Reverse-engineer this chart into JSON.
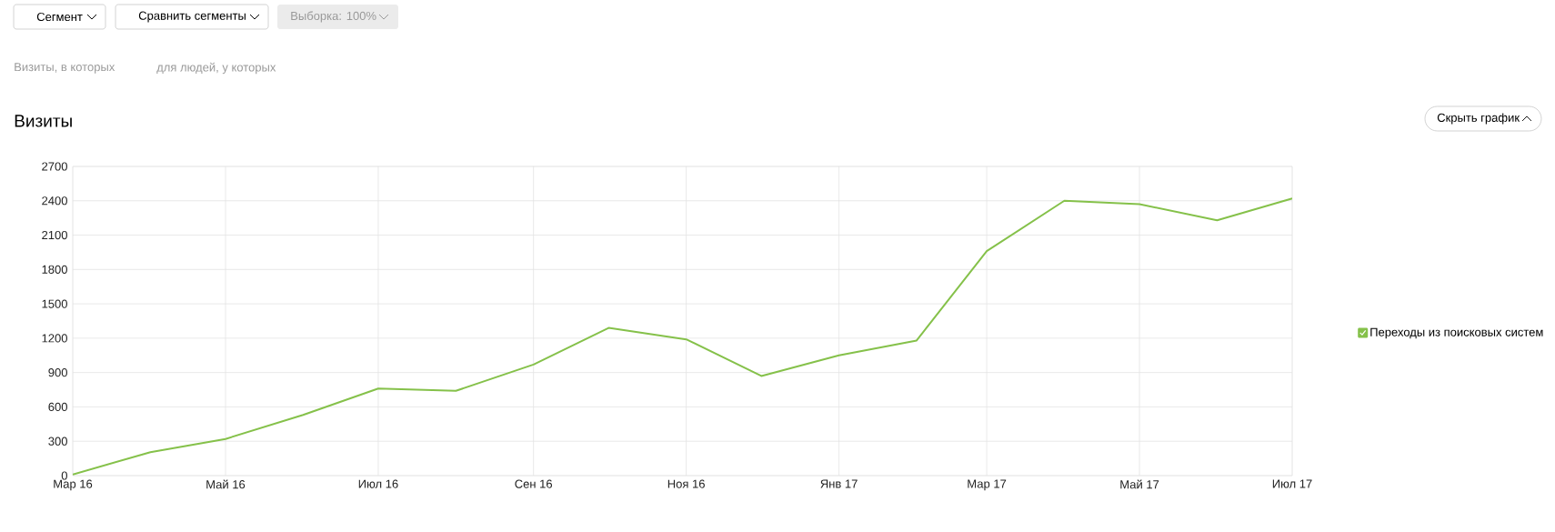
{
  "chart_data": {
    "type": "line",
    "title": "Визиты",
    "annotations": [
      "Сегмент",
      "Сравнить сегменты",
      "Выборка: 100%",
      "Визиты, в которых",
      "для людей, у которых",
      "Скрыть график"
    ],
    "x": [
      "2016-03",
      "2016-04",
      "2016-05",
      "2016-06",
      "2016-07",
      "2016-08",
      "2016-09",
      "2016-10",
      "2016-11",
      "2016-12",
      "2017-01",
      "2017-02",
      "2017-03",
      "2017-04",
      "2017-05",
      "2017-06",
      "2017-07"
    ],
    "series": [
      {
        "name": "Переходы из поисковых систем",
        "color": "#85c14a",
        "values": [
          10,
          205,
          320,
          530,
          760,
          740,
          970,
          1290,
          1190,
          870,
          1050,
          1180,
          1960,
          2400,
          2370,
          2230,
          2420
        ]
      }
    ],
    "xlim": [
      "2016-03",
      "2017-07"
    ],
    "xticks": [
      {
        "value": "2016-03",
        "label": "Мар 16"
      },
      {
        "value": "2016-05",
        "label": "Май 16"
      },
      {
        "value": "2016-07",
        "label": "Июл 16"
      },
      {
        "value": "2016-09",
        "label": "Сен 16"
      },
      {
        "value": "2016-11",
        "label": "Ноя 16"
      },
      {
        "value": "2017-01",
        "label": "Янв 17"
      },
      {
        "value": "2017-03",
        "label": "Мар 17"
      },
      {
        "value": "2017-05",
        "label": "Май 17"
      },
      {
        "value": "2017-07",
        "label": "Июл 17"
      }
    ],
    "ylim": [
      0,
      2700
    ],
    "yticks": [
      0,
      300,
      600,
      900,
      1200,
      1500,
      1800,
      2100,
      2400,
      2700
    ],
    "grid": true,
    "legend": "right",
    "marker": "none",
    "line_style": "solid"
  }
}
